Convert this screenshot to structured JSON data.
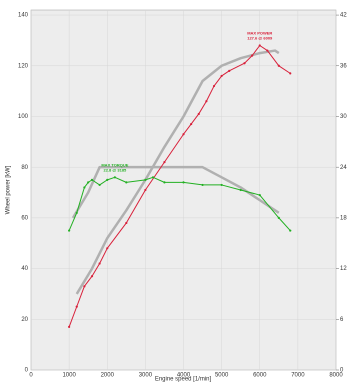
{
  "chart_data": {
    "type": "line",
    "x_label": "Engine speed [1/min]",
    "y_label": "Wheel power [kW]",
    "xlim": [
      0,
      8000
    ],
    "xticks": [
      0,
      1000,
      2000,
      3000,
      4000,
      5000,
      6000,
      7000,
      8000
    ],
    "ylim": [
      0,
      142
    ],
    "yticks": [
      0,
      20,
      40,
      60,
      80,
      100,
      120,
      140
    ],
    "y2lim": [
      0,
      42.6
    ],
    "y2ticks": [
      0,
      6,
      12,
      18,
      24,
      30,
      36,
      42
    ],
    "grid": true,
    "series": [
      {
        "color": "#b0b0b0",
        "width": 2.5,
        "markers": false,
        "axis": "y",
        "x": [
          1200,
          1600,
          2000,
          2500,
          3000,
          3500,
          4000,
          4500,
          5000,
          5500,
          6000,
          6400,
          6500
        ],
        "values": [
          30,
          40,
          52,
          63,
          75,
          88,
          100,
          114,
          120,
          123,
          125,
          126,
          125
        ]
      },
      {
        "color": "#b0b0b0",
        "width": 2.5,
        "markers": false,
        "axis": "y2",
        "x": [
          1100,
          1500,
          1800,
          2500,
          3500,
          4500,
          5000,
          5500,
          6000,
          6500
        ],
        "values": [
          18,
          21,
          24,
          24,
          24,
          24,
          22.8,
          21.6,
          20.1,
          18.6
        ]
      },
      {
        "color": "#d8203a",
        "width": 1,
        "markers": true,
        "axis": "y",
        "annotation": [
          "MAX POWER",
          "127.6 @ 6009"
        ],
        "x": [
          1000,
          1200,
          1400,
          1600,
          1800,
          2000,
          2500,
          3000,
          3500,
          4000,
          4200,
          4400,
          4600,
          4800,
          5000,
          5200,
          5600,
          5800,
          6000,
          6200,
          6500,
          6800
        ],
        "values": [
          17,
          25,
          33,
          37,
          42,
          48,
          58,
          71,
          82,
          93,
          97,
          101,
          106,
          112,
          116,
          118,
          121,
          124,
          128,
          126,
          120,
          117
        ]
      },
      {
        "color": "#22b022",
        "width": 1,
        "markers": true,
        "axis": "y2",
        "annotation": [
          "MAX TORQUE",
          "22.8 @ 3185"
        ],
        "x": [
          1000,
          1200,
          1400,
          1500,
          1600,
          1800,
          2000,
          2200,
          2500,
          3000,
          3200,
          3500,
          4000,
          4500,
          5000,
          5500,
          6000,
          6500,
          6800
        ],
        "values": [
          16.5,
          18.6,
          21.6,
          22.2,
          22.5,
          21.9,
          22.5,
          22.8,
          22.2,
          22.5,
          22.8,
          22.2,
          22.2,
          21.9,
          21.9,
          21.3,
          20.7,
          18,
          16.5
        ]
      }
    ]
  }
}
